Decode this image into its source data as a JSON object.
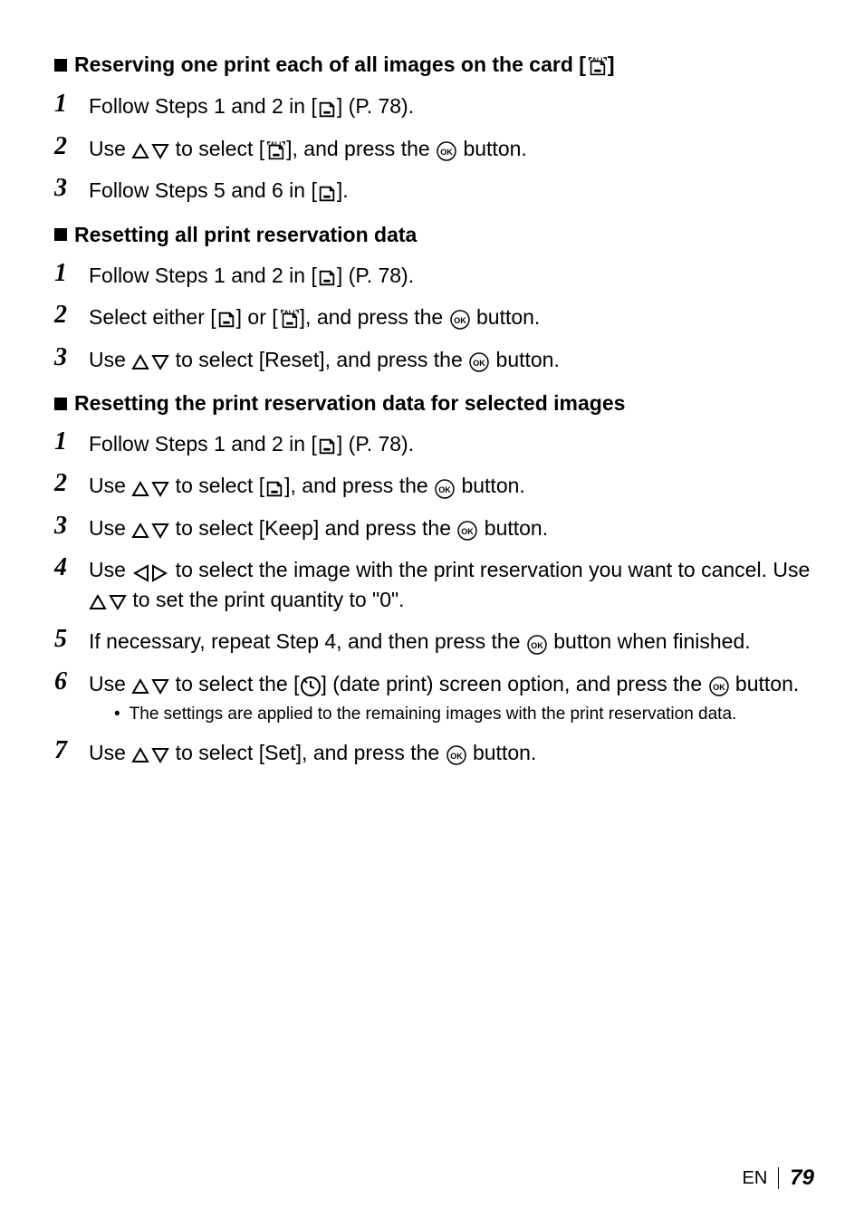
{
  "sections": [
    {
      "heading_parts": [
        "Reserving one print each of all images on the card [",
        "ICON_PRINT_ALL",
        "]"
      ],
      "steps": [
        {
          "num": "1",
          "parts": [
            "Follow Steps 1 and 2 in [",
            "ICON_PRINT",
            "] (P. 78)."
          ]
        },
        {
          "num": "2",
          "parts": [
            "Use ",
            "ICON_UPDOWN",
            " to select [",
            "ICON_PRINT_ALL",
            "], and press the ",
            "ICON_OK",
            " button."
          ]
        },
        {
          "num": "3",
          "parts": [
            "Follow Steps 5 and 6 in [",
            "ICON_PRINT",
            "]."
          ]
        }
      ]
    },
    {
      "heading_parts": [
        "Resetting all print reservation data"
      ],
      "steps": [
        {
          "num": "1",
          "parts": [
            "Follow Steps 1 and 2 in [",
            "ICON_PRINT",
            "] (P. 78)."
          ]
        },
        {
          "num": "2",
          "parts": [
            "Select either [",
            "ICON_PRINT",
            "] or [",
            "ICON_PRINT_ALL",
            "], and press the ",
            "ICON_OK",
            " button."
          ]
        },
        {
          "num": "3",
          "parts": [
            "Use ",
            "ICON_UPDOWN",
            " to select [Reset], and press the ",
            "ICON_OK",
            " button."
          ]
        }
      ]
    },
    {
      "heading_parts": [
        "Resetting the print reservation data for selected images"
      ],
      "steps": [
        {
          "num": "1",
          "parts": [
            "Follow Steps 1 and 2 in [",
            "ICON_PRINT",
            "] (P. 78)."
          ]
        },
        {
          "num": "2",
          "parts": [
            "Use ",
            "ICON_UPDOWN",
            " to select [",
            "ICON_PRINT",
            "], and press the ",
            "ICON_OK",
            " button."
          ]
        },
        {
          "num": "3",
          "parts": [
            "Use ",
            "ICON_UPDOWN",
            " to select [Keep] and press the ",
            "ICON_OK",
            " button."
          ]
        },
        {
          "num": "4",
          "parts": [
            "Use ",
            "ICON_LEFTRIGHT",
            " to select the image with the print reservation you want to cancel. Use ",
            "ICON_UPDOWN",
            " to set the print quantity to \"0\"."
          ]
        },
        {
          "num": "5",
          "parts": [
            "If necessary, repeat Step 4, and then press the ",
            "ICON_OK",
            " button when finished."
          ]
        },
        {
          "num": "6",
          "parts": [
            "Use ",
            "ICON_UPDOWN",
            " to select the [",
            "ICON_DATE",
            "] (date print) screen option, and press the ",
            "ICON_OK",
            " button."
          ],
          "sub": "The settings are applied to the remaining images with the print reservation data."
        },
        {
          "num": "7",
          "parts": [
            "Use ",
            "ICON_UPDOWN",
            " to select [Set], and press the ",
            "ICON_OK",
            " button."
          ]
        }
      ]
    }
  ],
  "footer": {
    "label": "EN",
    "page": "79"
  },
  "colors": {
    "text": "#000000",
    "bg": "#ffffff"
  }
}
